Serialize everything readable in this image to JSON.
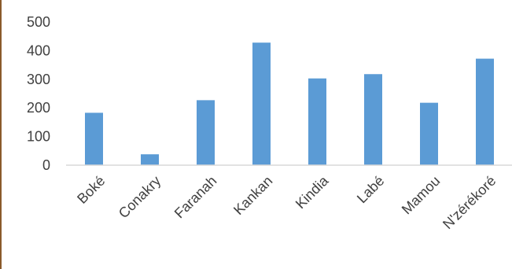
{
  "chart_data": {
    "type": "bar",
    "title": "",
    "xlabel": "",
    "ylabel": "",
    "categories": [
      "Boké",
      "Conakry",
      "Faranah",
      "Kankan",
      "Kindia",
      "Labé",
      "Mamou",
      "N'zérékoré"
    ],
    "values": [
      183,
      38,
      227,
      428,
      303,
      318,
      218,
      372
    ],
    "ylim": [
      0,
      500
    ],
    "yticks": [
      0,
      100,
      200,
      300,
      400,
      500
    ],
    "grid": false,
    "legend": "none",
    "bar_color": "#5b9bd5",
    "axis_color": "#d9d9d9"
  }
}
